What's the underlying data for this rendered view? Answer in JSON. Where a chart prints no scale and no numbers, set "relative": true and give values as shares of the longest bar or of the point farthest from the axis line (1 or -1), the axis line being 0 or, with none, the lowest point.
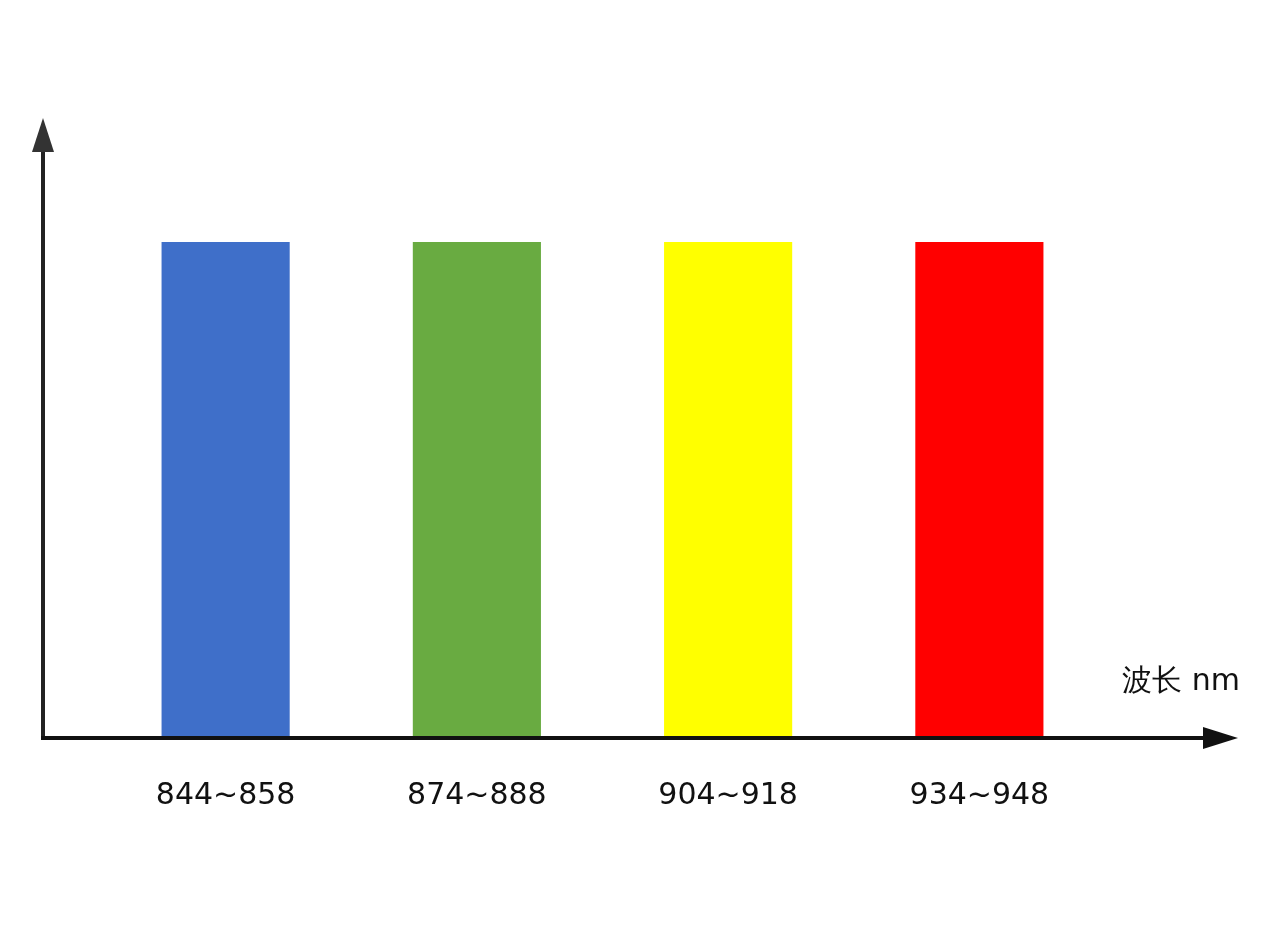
{
  "chart_data": {
    "type": "bar",
    "relative": true,
    "xlabel": "波长 nm",
    "categories": [
      "844~858",
      "874~888",
      "904~918",
      "934~948"
    ],
    "values": [
      1,
      1,
      1,
      1
    ],
    "colors": [
      "#3f6fc9",
      "#69ab41",
      "#ffff00",
      "#ff0000"
    ]
  }
}
